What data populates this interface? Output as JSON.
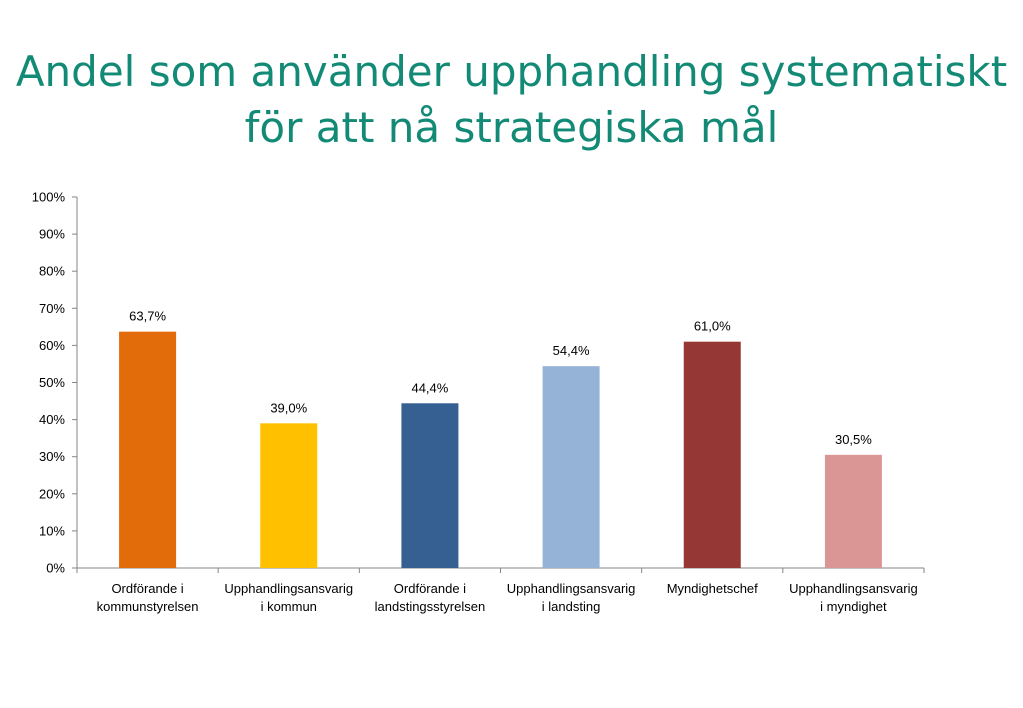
{
  "slide": {
    "title_line1": "Andel som använder upphandling systematiskt",
    "title_line2": "för att nå strategiska mål"
  },
  "chart_data": {
    "type": "bar",
    "categories": [
      [
        "Ordförande i",
        "kommunstyrelsen"
      ],
      [
        "Upphandlingsansvarig",
        "i kommun"
      ],
      [
        "Ordförande i",
        "landstingsstyrelsen"
      ],
      [
        "Upphandlingsansvarig",
        "i landsting"
      ],
      [
        "Myndighetschef"
      ],
      [
        "Upphandlingsansvarig",
        "i myndighet"
      ]
    ],
    "values": [
      63.7,
      39.0,
      44.4,
      54.4,
      61.0,
      30.5
    ],
    "value_labels": [
      "63,7%",
      "39,0%",
      "44,4%",
      "54,4%",
      "61,0%",
      "30,5%"
    ],
    "colors": [
      "#e36c0a",
      "#ffc000",
      "#366092",
      "#95b3d7",
      "#953735",
      "#d99694"
    ],
    "ylim": [
      0,
      100
    ],
    "yticks": [
      0,
      10,
      20,
      30,
      40,
      50,
      60,
      70,
      80,
      90,
      100
    ],
    "ytick_labels": [
      "0%",
      "10%",
      "20%",
      "30%",
      "40%",
      "50%",
      "60%",
      "70%",
      "80%",
      "90%",
      "100%"
    ],
    "grid": false,
    "legend": "none"
  }
}
